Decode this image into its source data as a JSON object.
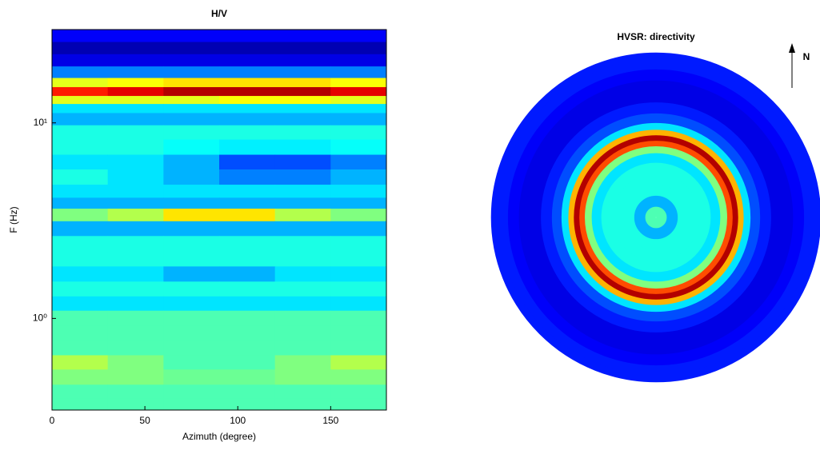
{
  "chart_data": [
    {
      "type": "heatmap",
      "title": "H/V",
      "xlabel": "Azimuth (degree)",
      "ylabel": "F (Hz)",
      "colormap": "jet",
      "zlim": [
        0,
        1
      ],
      "ylog": true,
      "xlim": [
        0,
        180
      ],
      "xticks": [
        0,
        50,
        100,
        150
      ],
      "ylim": [
        0.34,
        30
      ],
      "yticks": [
        {
          "value": 1,
          "label": "10⁰"
        },
        {
          "value": 10,
          "label": "10¹"
        }
      ],
      "x": [
        15,
        45,
        75,
        105,
        135,
        165
      ],
      "y": [
        28,
        24,
        21,
        18,
        16,
        14.5,
        13,
        12,
        10.5,
        9,
        7.5,
        6.3,
        5.3,
        4.4,
        3.9,
        3.4,
        2.9,
        2.4,
        2.0,
        1.7,
        1.4,
        1.2,
        1.0,
        0.85,
        0.7,
        0.6,
        0.5,
        0.42,
        0.36
      ],
      "values": [
        [
          0.12,
          0.12,
          0.12,
          0.12,
          0.12,
          0.12
        ],
        [
          0.05,
          0.05,
          0.05,
          0.05,
          0.05,
          0.05
        ],
        [
          0.1,
          0.1,
          0.1,
          0.1,
          0.1,
          0.1
        ],
        [
          0.25,
          0.25,
          0.25,
          0.25,
          0.25,
          0.25
        ],
        [
          0.6,
          0.62,
          0.65,
          0.65,
          0.65,
          0.62
        ],
        [
          0.85,
          0.9,
          0.95,
          0.95,
          0.95,
          0.9
        ],
        [
          0.6,
          0.6,
          0.6,
          0.62,
          0.62,
          0.6
        ],
        [
          0.35,
          0.35,
          0.35,
          0.35,
          0.35,
          0.35
        ],
        [
          0.3,
          0.3,
          0.3,
          0.3,
          0.3,
          0.3
        ],
        [
          0.4,
          0.4,
          0.4,
          0.4,
          0.4,
          0.4
        ],
        [
          0.4,
          0.4,
          0.38,
          0.36,
          0.36,
          0.38
        ],
        [
          0.35,
          0.35,
          0.3,
          0.2,
          0.2,
          0.25
        ],
        [
          0.4,
          0.35,
          0.3,
          0.25,
          0.25,
          0.3
        ],
        [
          0.35,
          0.35,
          0.35,
          0.35,
          0.35,
          0.35
        ],
        [
          0.3,
          0.3,
          0.3,
          0.3,
          0.3,
          0.3
        ],
        [
          0.5,
          0.55,
          0.65,
          0.65,
          0.55,
          0.5
        ],
        [
          0.3,
          0.3,
          0.3,
          0.3,
          0.3,
          0.3
        ],
        [
          0.4,
          0.4,
          0.4,
          0.4,
          0.4,
          0.4
        ],
        [
          0.4,
          0.4,
          0.4,
          0.4,
          0.4,
          0.4
        ],
        [
          0.35,
          0.35,
          0.3,
          0.3,
          0.35,
          0.35
        ],
        [
          0.4,
          0.4,
          0.4,
          0.4,
          0.4,
          0.4
        ],
        [
          0.35,
          0.35,
          0.35,
          0.35,
          0.35,
          0.35
        ],
        [
          0.45,
          0.45,
          0.45,
          0.45,
          0.45,
          0.45
        ],
        [
          0.45,
          0.45,
          0.45,
          0.45,
          0.45,
          0.45
        ],
        [
          0.45,
          0.45,
          0.45,
          0.45,
          0.45,
          0.45
        ],
        [
          0.55,
          0.5,
          0.45,
          0.45,
          0.5,
          0.55
        ],
        [
          0.5,
          0.5,
          0.48,
          0.48,
          0.5,
          0.5
        ],
        [
          0.45,
          0.45,
          0.45,
          0.45,
          0.45,
          0.45
        ],
        [
          0.45,
          0.45,
          0.45,
          0.45,
          0.45,
          0.45
        ]
      ]
    },
    {
      "type": "polar",
      "title": "HVSR: directivity",
      "north_label": "N",
      "colormap": "jet",
      "zlim": [
        0,
        1
      ],
      "rlim": [
        0,
        30
      ],
      "r": [
        1,
        3,
        5,
        7,
        9,
        11,
        12.5,
        13.5,
        14.5,
        15.5,
        16.5,
        18,
        20,
        22,
        24,
        26,
        28,
        29.5
      ],
      "values": [
        0.45,
        0.3,
        0.4,
        0.4,
        0.4,
        0.35,
        0.5,
        0.8,
        0.95,
        0.7,
        0.35,
        0.2,
        0.15,
        0.1,
        0.1,
        0.12,
        0.15,
        0.15
      ]
    }
  ]
}
